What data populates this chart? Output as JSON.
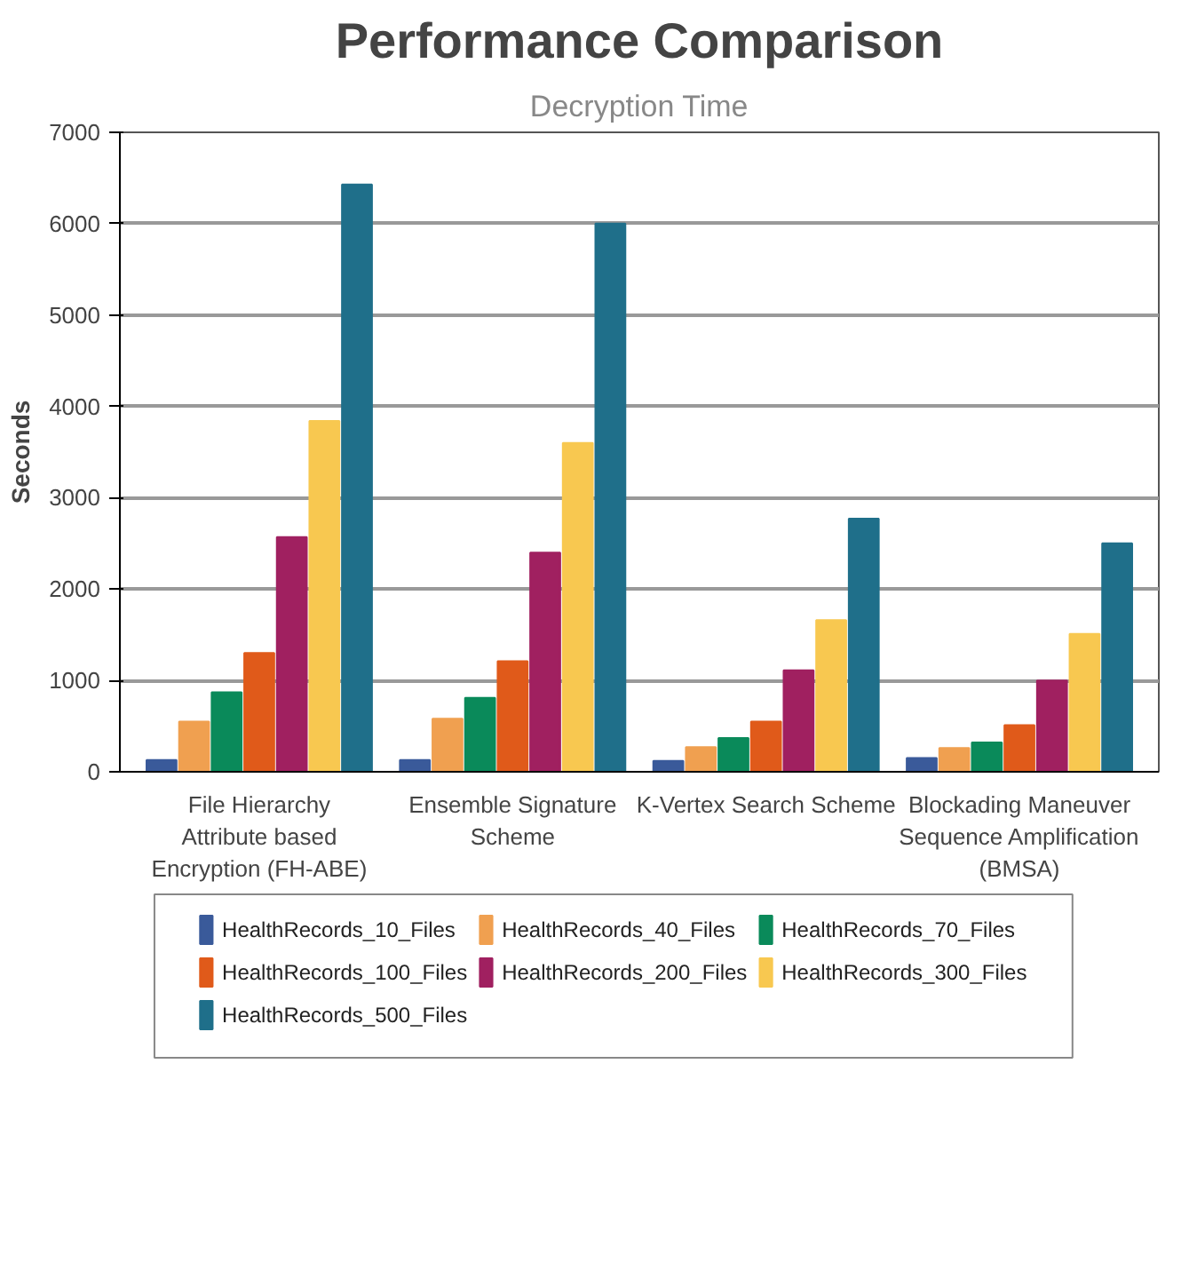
{
  "chart_data": {
    "type": "bar",
    "title": "Performance Comparison",
    "subtitle": "Decryption Time",
    "ylabel": "Seconds",
    "categories": [
      "File Hierarchy Attribute based Encryption (FH-ABE)",
      "Ensemble Signature Scheme",
      "K-Vertex Search Scheme",
      "Blockading Maneuver Sequence Amplification (BMSA)"
    ],
    "series": [
      {
        "name": "HealthRecords_10_Files",
        "color": "#3a5a9a",
        "values": [
          130,
          130,
          120,
          150
        ]
      },
      {
        "name": "HealthRecords_40_Files",
        "color": "#f0a050",
        "values": [
          550,
          580,
          270,
          260
        ]
      },
      {
        "name": "HealthRecords_70_Files",
        "color": "#0a8a5a",
        "values": [
          870,
          810,
          370,
          320
        ]
      },
      {
        "name": "HealthRecords_100_Files",
        "color": "#e05a1a",
        "values": [
          1300,
          1210,
          550,
          510
        ]
      },
      {
        "name": "HealthRecords_200_Files",
        "color": "#a02060",
        "values": [
          2570,
          2400,
          1110,
          1000
        ]
      },
      {
        "name": "HealthRecords_300_Files",
        "color": "#f8c850",
        "values": [
          3840,
          3600,
          1660,
          1510
        ]
      },
      {
        "name": "HealthRecords_500_Files",
        "color": "#1f6f8a",
        "values": [
          6430,
          6000,
          2770,
          2500
        ]
      }
    ],
    "ylim": [
      0,
      7000
    ],
    "yticks": [
      0,
      1000,
      2000,
      3000,
      4000,
      5000,
      6000,
      7000
    ],
    "grid": "y",
    "legend": "bottom"
  }
}
